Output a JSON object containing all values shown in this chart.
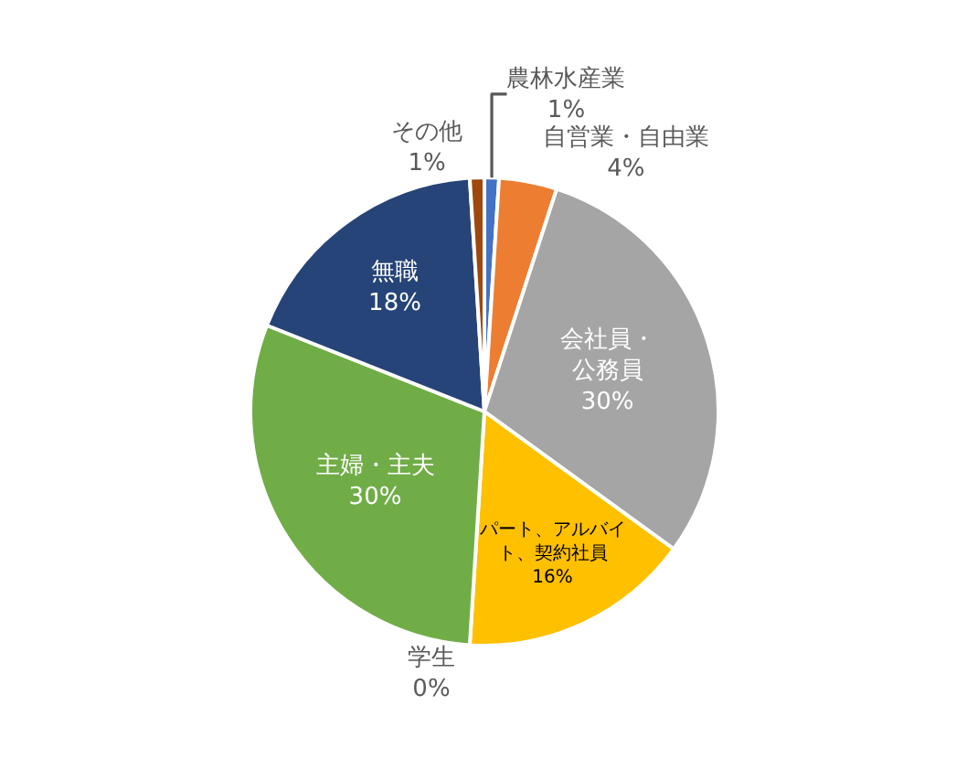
{
  "chart_data": {
    "type": "pie",
    "categories": [
      "農林水産業",
      "自営業・自由業",
      "会社員・公務員",
      "パート、アルバイト、契約社員",
      "学生",
      "主婦・主夫",
      "無職",
      "その他"
    ],
    "values": [
      1,
      4,
      30,
      16,
      0,
      30,
      18,
      1
    ],
    "value_labels": [
      "1%",
      "4%",
      "30%",
      "16%",
      "0%",
      "30%",
      "18%",
      "1%"
    ],
    "colors": [
      "#4472c4",
      "#ed7d31",
      "#a5a5a5",
      "#ffc000",
      "#5b9bd5",
      "#70ad47",
      "#264478",
      "#9e480e"
    ],
    "legend": false
  }
}
